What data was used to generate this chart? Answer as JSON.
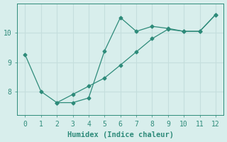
{
  "line1_x": [
    0,
    1,
    2,
    3,
    4,
    5,
    6,
    7,
    8,
    9,
    10,
    11,
    12
  ],
  "line1_y": [
    9.25,
    8.0,
    7.62,
    7.62,
    7.78,
    9.38,
    10.52,
    10.05,
    10.22,
    10.15,
    10.05,
    10.05,
    10.62
  ],
  "line2_x": [
    2,
    3,
    4,
    5,
    6,
    7,
    8,
    9,
    10,
    11,
    12
  ],
  "line2_y": [
    7.62,
    7.9,
    8.18,
    8.46,
    8.9,
    9.35,
    9.8,
    10.12,
    10.05,
    10.05,
    10.62
  ],
  "line_color": "#2e8b7a",
  "bg_color": "#d8eeec",
  "grid_color": "#c5dedd",
  "xlabel": "Humidex (Indice chaleur)",
  "xlim": [
    -0.5,
    12.5
  ],
  "ylim": [
    7.2,
    11.0
  ],
  "xticks": [
    0,
    1,
    2,
    3,
    4,
    5,
    6,
    7,
    8,
    9,
    10,
    11,
    12
  ],
  "yticks": [
    8,
    9,
    10
  ],
  "marker": "D",
  "markersize": 2.5,
  "linewidth": 0.9,
  "xlabel_fontsize": 7.5,
  "tick_fontsize": 7
}
